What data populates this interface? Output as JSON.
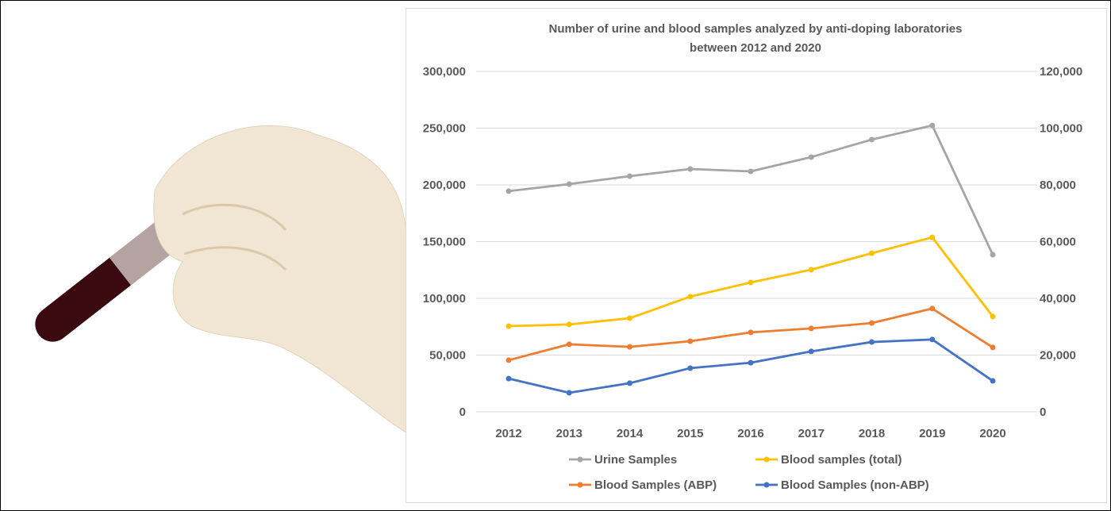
{
  "chart_data": {
    "type": "line",
    "title": [
      "Number of urine and blood samples analyzed by anti-doping laboratories",
      "between 2012 and 2020"
    ],
    "categories": [
      "2012",
      "2013",
      "2014",
      "2015",
      "2016",
      "2017",
      "2018",
      "2019",
      "2020"
    ],
    "y_left": {
      "range": [
        0,
        300000
      ],
      "ticks": [
        "0",
        "50,000",
        "100,000",
        "150,000",
        "200,000",
        "250,000",
        "300,000"
      ]
    },
    "y_right": {
      "range": [
        0,
        120000
      ],
      "ticks": [
        "0",
        "20,000",
        "40,000",
        "60,000",
        "80,000",
        "100,000",
        "120,000"
      ]
    },
    "grid": true,
    "legend_placement": "bottom",
    "series": [
      {
        "name": "Urine Samples",
        "axis": "left",
        "color": "#a5a5a5",
        "values": [
          194500,
          200700,
          207700,
          214000,
          211900,
          224500,
          239900,
          252400,
          138500
        ]
      },
      {
        "name": "Blood samples (total)",
        "axis": "right",
        "color": "#ffc000",
        "values": [
          30200,
          30800,
          33000,
          40600,
          45600,
          50100,
          55900,
          61500,
          33600
        ]
      },
      {
        "name": "Blood Samples (ABP)",
        "axis": "right",
        "color": "#ed7d31",
        "values": [
          18200,
          23800,
          22900,
          24900,
          28000,
          29400,
          31300,
          36400,
          22700
        ]
      },
      {
        "name": "Blood Samples (non-ABP)",
        "axis": "right",
        "color": "#4472c4",
        "values": [
          11700,
          6700,
          10100,
          15400,
          17300,
          21300,
          24600,
          25500,
          10900
        ]
      }
    ]
  },
  "photo": {
    "subject": "gloved hand holding blood sample tube"
  }
}
